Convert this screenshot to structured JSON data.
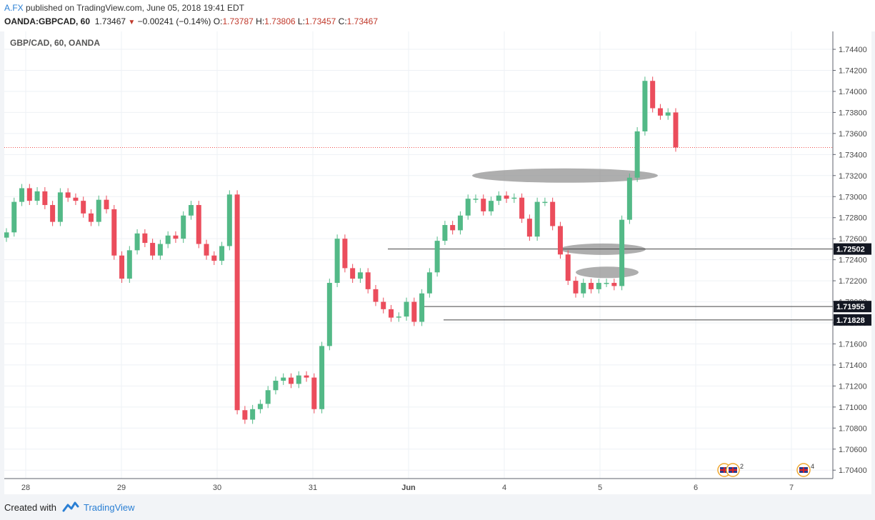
{
  "header": {
    "author": "A.FX",
    "published_text": "published on TradingView.com, June 05, 2018 19:41 EDT",
    "symbol": "OANDA:GBPCAD, 60",
    "last": "1.73467",
    "change": "−0.00241 (−0.14%)",
    "o_label": "O:",
    "o_value": "1.73787",
    "h_label": "H:",
    "h_value": "1.73806",
    "l_label": "L:",
    "l_value": "1.73457",
    "c_label": "C:",
    "c_value": "1.73467"
  },
  "chart_title": "GBP/CAD, 60, OANDA",
  "footer": {
    "created_with": "Created with",
    "brand": "TradingView"
  },
  "colors": {
    "up": "#53b987",
    "down": "#eb4d5c",
    "grid": "#eef1f5",
    "axis_text": "#4a4a4a",
    "price_line": "#ef5350",
    "hline": "#444444",
    "ellipse": "#8c8c8c"
  },
  "chart_data": {
    "type": "candlestick",
    "timeframe": "60",
    "x_ticks": [
      "28",
      "29",
      "30",
      "31",
      "Jun",
      "4",
      "5",
      "6",
      "7"
    ],
    "y_ticks": [
      "1.74400",
      "1.74200",
      "1.74000",
      "1.73800",
      "1.73600",
      "1.73400",
      "1.73200",
      "1.73000",
      "1.72800",
      "1.72600",
      "1.72400",
      "1.72200",
      "1.72000",
      "1.71800",
      "1.71600",
      "1.71400",
      "1.71200",
      "1.71000",
      "1.70800",
      "1.70600",
      "1.70400"
    ],
    "ylim": [
      1.7032,
      1.7457
    ],
    "current_price": 1.73467,
    "horizontal_levels": [
      {
        "label": "1.72502",
        "value": 1.72502
      },
      {
        "label": "1.71955",
        "value": 1.71955
      },
      {
        "label": "1.71828",
        "value": 1.71828
      }
    ],
    "zones": [
      {
        "value": 1.732,
        "from": "Jun 1 10:00",
        "to": "Jun 5 13:00"
      },
      {
        "value": 1.725,
        "from": "Jun 4 14:00",
        "to": "Jun 5 08:00"
      },
      {
        "value": 1.7228,
        "from": "Jun 4 17:00",
        "to": "Jun 5 06:00"
      }
    ],
    "event_markers": [
      {
        "day": "6",
        "label": "4"
      },
      {
        "day": "6",
        "label": "2"
      },
      {
        "day": "7",
        "label": "4"
      }
    ],
    "ohlc_keypoints": [
      [
        "May 28 00:00",
        1.7266
      ],
      [
        "May 28 03:00",
        1.7295
      ],
      [
        "May 28 06:00",
        1.7308
      ],
      [
        "May 28 09:00",
        1.7296
      ],
      [
        "May 28 12:00",
        1.7305
      ],
      [
        "May 28 15:00",
        1.7292
      ],
      [
        "May 28 17:00",
        1.7276
      ],
      [
        "May 28 20:00",
        1.7304
      ],
      [
        "May 28 23:00",
        1.7299
      ],
      [
        "May 29 02:00",
        1.7296
      ],
      [
        "May 29 05:00",
        1.7284
      ],
      [
        "May 29 07:00",
        1.7276
      ],
      [
        "May 29 09:00",
        1.7297
      ],
      [
        "May 29 11:00",
        1.7288
      ],
      [
        "May 29 13:00",
        1.7244
      ],
      [
        "May 29 14:00",
        1.7222
      ],
      [
        "May 29 16:00",
        1.7249
      ],
      [
        "May 29 18:00",
        1.7265
      ],
      [
        "May 29 21:00",
        1.7256
      ],
      [
        "May 30 01:00",
        1.7244
      ],
      [
        "May 30 04:00",
        1.7255
      ],
      [
        "May 30 07:00",
        1.7263
      ],
      [
        "May 30 10:00",
        1.726
      ],
      [
        "May 30 13:00",
        1.7282
      ],
      [
        "May 30 15:00",
        1.7292
      ],
      [
        "May 30 17:00",
        1.7255
      ],
      [
        "May 30 18:00",
        1.7244
      ],
      [
        "May 30 20:00",
        1.7239
      ],
      [
        "May 30 22:00",
        1.7253
      ],
      [
        "May 30 23:00",
        1.7302
      ],
      [
        "May 31 00:00",
        1.7097
      ],
      [
        "May 31 02:00",
        1.7088
      ],
      [
        "May 31 04:00",
        1.7098
      ],
      [
        "May 31 07:00",
        1.7103
      ],
      [
        "May 31 09:00",
        1.7116
      ],
      [
        "May 31 11:00",
        1.7125
      ],
      [
        "May 31 13:00",
        1.7128
      ],
      [
        "May 31 15:00",
        1.7122
      ],
      [
        "May 31 17:00",
        1.713
      ],
      [
        "May 31 19:00",
        1.7128
      ],
      [
        "May 31 21:00",
        1.7098
      ],
      [
        "May 31 23:00",
        1.7158
      ],
      [
        "Jun 1 00:00",
        1.7218
      ],
      [
        "Jun 1 02:00",
        1.726
      ],
      [
        "Jun 1 04:00",
        1.7232
      ],
      [
        "Jun 1 06:00",
        1.7222
      ],
      [
        "Jun 1 08:00",
        1.7228
      ],
      [
        "Jun 1 10:00",
        1.7212
      ],
      [
        "Jun 1 12:00",
        1.72
      ],
      [
        "Jun 1 14:00",
        1.7193
      ],
      [
        "Jun 1 16:00",
        1.7185
      ],
      [
        "Jun 1 18:00",
        1.7186
      ],
      [
        "Jun 1 20:00",
        1.72
      ],
      [
        "Jun 1 21:00",
        1.7181
      ],
      [
        "Jun 4 00:00",
        1.7208
      ],
      [
        "Jun 4 02:00",
        1.7228
      ],
      [
        "Jun 4 04:00",
        1.7258
      ],
      [
        "Jun 4 06:00",
        1.7273
      ],
      [
        "Jun 4 08:00",
        1.7268
      ],
      [
        "Jun 4 10:00",
        1.7282
      ],
      [
        "Jun 4 12:00",
        1.7298
      ],
      [
        "Jun 4 14:00",
        1.7298
      ],
      [
        "Jun 4 16:00",
        1.7286
      ],
      [
        "Jun 4 18:00",
        1.7296
      ],
      [
        "Jun 4 20:00",
        1.7301
      ],
      [
        "Jun 4 22:00",
        1.7298
      ],
      [
        "Jun 5 00:00",
        1.7299
      ],
      [
        "Jun 5 02:00",
        1.7279
      ],
      [
        "Jun 5 04:00",
        1.7262
      ],
      [
        "Jun 5 06:00",
        1.7295
      ],
      [
        "Jun 5 08:00",
        1.7295
      ],
      [
        "Jun 5 10:00",
        1.7272
      ],
      [
        "Jun 5 11:00",
        1.7245
      ],
      [
        "Jun 5 12:00",
        1.722
      ],
      [
        "Jun 5 13:00",
        1.7208
      ],
      [
        "Jun 5 15:00",
        1.7218
      ],
      [
        "Jun 5 17:00",
        1.7212
      ],
      [
        "Jun 5 19:00",
        1.7218
      ],
      [
        "Jun 5 21:00",
        1.7218
      ],
      [
        "Jun 5 23:00",
        1.7215
      ],
      [
        "Jun 5 01:00",
        1.7278
      ],
      [
        "Jun 5 03:00",
        1.7318
      ],
      [
        "Jun 5 05:00",
        1.7362
      ],
      [
        "Jun 5 07:00",
        1.741
      ],
      [
        "Jun 5 09:00",
        1.7384
      ],
      [
        "Jun 5 11:00",
        1.7377
      ],
      [
        "Jun 5 13:00",
        1.738
      ],
      [
        "Jun 5 14:00",
        1.73467
      ]
    ]
  }
}
